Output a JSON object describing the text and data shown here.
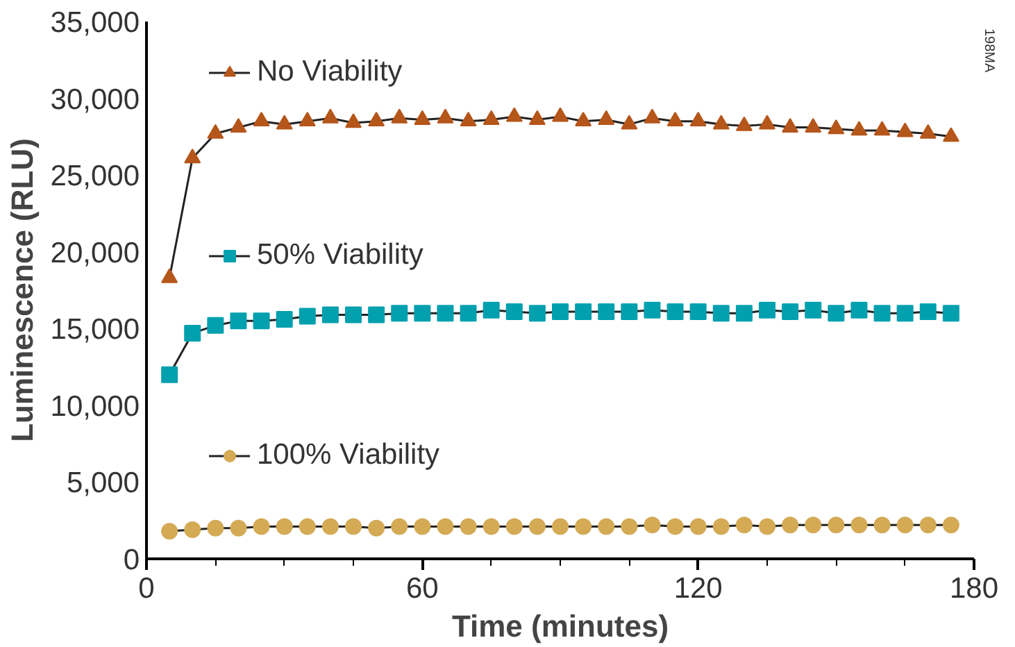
{
  "chart_data": {
    "type": "line",
    "xlabel": "Time (minutes)",
    "ylabel": "Luminescence (RLU)",
    "annotations": [
      "198MA"
    ],
    "x": [
      5,
      10,
      15,
      20,
      25,
      30,
      35,
      40,
      45,
      50,
      55,
      60,
      65,
      70,
      75,
      80,
      85,
      90,
      95,
      100,
      105,
      110,
      115,
      120,
      125,
      130,
      135,
      140,
      145,
      150,
      155,
      160,
      165,
      170,
      175
    ],
    "xlim": [
      0,
      180
    ],
    "xticks": [
      0,
      60,
      120,
      180
    ],
    "ylim": [
      0,
      35000
    ],
    "yticks": [
      {
        "value": 0,
        "label": "0"
      },
      {
        "value": 5000,
        "label": "5,000"
      },
      {
        "value": 10000,
        "label": "10,000"
      },
      {
        "value": 15000,
        "label": "15,000"
      },
      {
        "value": 20000,
        "label": "20,000"
      },
      {
        "value": 25000,
        "label": "25,000"
      },
      {
        "value": 30000,
        "label": "30,000"
      },
      {
        "value": 35000,
        "label": "35,000"
      }
    ],
    "grid": false,
    "legend": "left",
    "line_style": "solid",
    "series": [
      {
        "name": "No Viability",
        "color": "#b5561a",
        "marker": "triangle",
        "values": [
          18300,
          26100,
          27700,
          28100,
          28500,
          28300,
          28500,
          28700,
          28400,
          28500,
          28700,
          28600,
          28700,
          28500,
          28600,
          28800,
          28600,
          28800,
          28500,
          28600,
          28300,
          28700,
          28500,
          28500,
          28300,
          28200,
          28300,
          28100,
          28100,
          28000,
          27900,
          27900,
          27800,
          27700,
          27500
        ]
      },
      {
        "name": "50% Viability",
        "color": "#00a0ae",
        "marker": "square",
        "values": [
          12000,
          14700,
          15200,
          15500,
          15500,
          15600,
          15800,
          15900,
          15900,
          15900,
          16000,
          16000,
          16000,
          16000,
          16200,
          16100,
          16000,
          16100,
          16100,
          16100,
          16100,
          16200,
          16100,
          16100,
          16000,
          16000,
          16200,
          16100,
          16200,
          16000,
          16200,
          16000,
          16000,
          16100,
          16000
        ]
      },
      {
        "name": "100% Viability",
        "color": "#d4aa55",
        "marker": "circle",
        "values": [
          1800,
          1900,
          2000,
          2000,
          2100,
          2100,
          2100,
          2100,
          2100,
          2000,
          2100,
          2100,
          2100,
          2100,
          2100,
          2100,
          2100,
          2100,
          2100,
          2100,
          2100,
          2200,
          2100,
          2100,
          2100,
          2200,
          2100,
          2200,
          2200,
          2200,
          2200,
          2200,
          2200,
          2200,
          2200
        ]
      }
    ]
  }
}
